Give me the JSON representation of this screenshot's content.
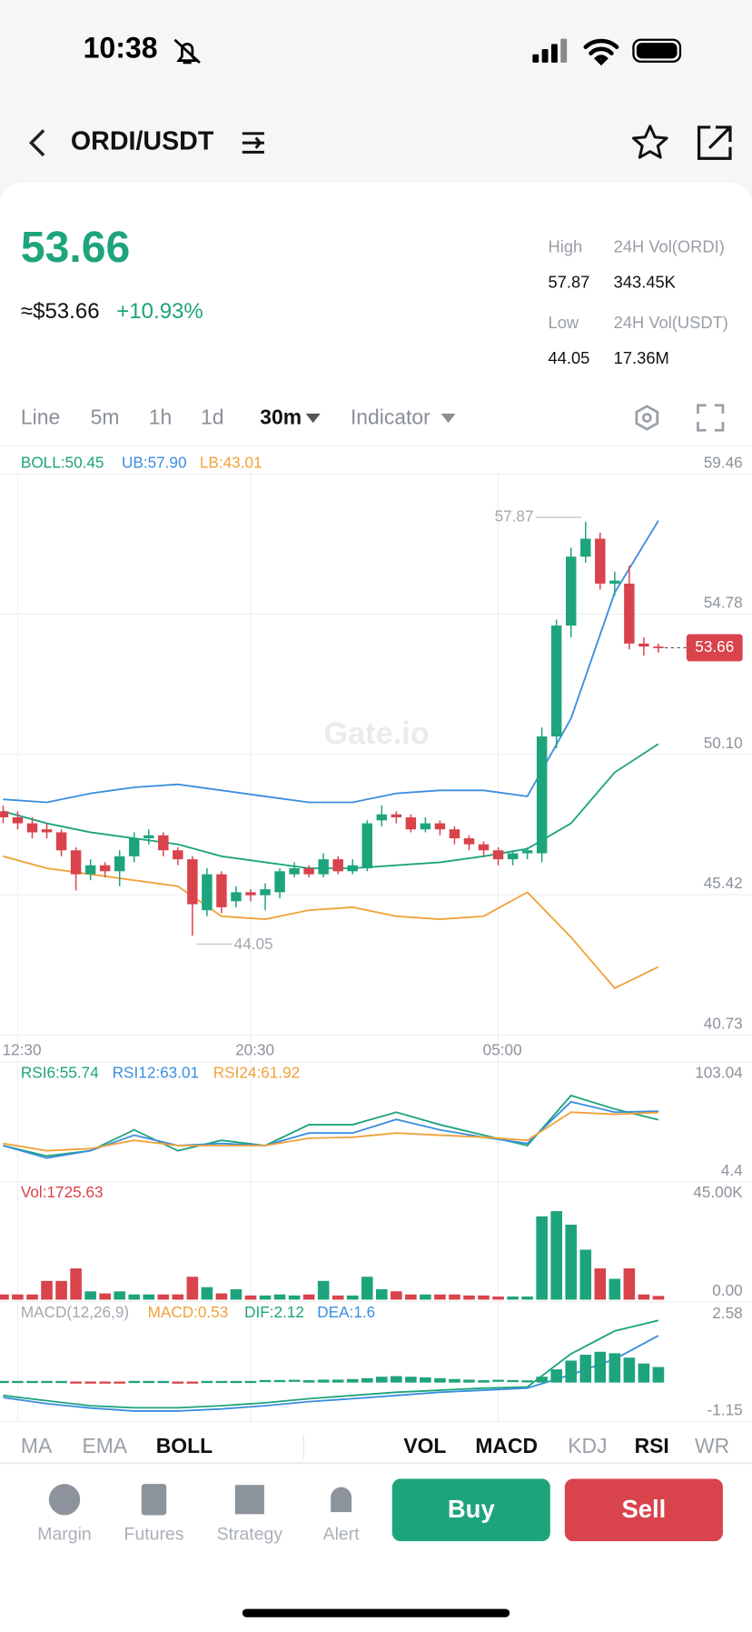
{
  "status_bar": {
    "time": "10:38"
  },
  "header": {
    "pair": "ORDI/USDT"
  },
  "ticker": {
    "price": "53.66",
    "usd_price": "≈$53.66",
    "change": "+10.93%",
    "stats": [
      {
        "label": "High",
        "value": "57.87"
      },
      {
        "label": "24H Vol(ORDI)",
        "value": "343.45K"
      },
      {
        "label": "Low",
        "value": "44.05"
      },
      {
        "label": "24H Vol(USDT)",
        "value": "17.36M"
      }
    ]
  },
  "timeframes": {
    "items": [
      "Line",
      "5m",
      "1h",
      "1d",
      "30m",
      "Indicator"
    ],
    "active": 4
  },
  "chart_data": {
    "type": "candlestick",
    "up_color": "#1ea47c",
    "down_color": "#d8434c",
    "open": [
      48.2,
      48.0,
      47.8,
      47.6,
      47.5,
      46.9,
      46.1,
      46.4,
      46.2,
      46.7,
      47.3,
      47.4,
      46.9,
      46.6,
      44.9,
      46.1,
      45.2,
      45.5,
      45.4,
      45.5,
      46.1,
      46.3,
      46.1,
      46.6,
      46.2,
      46.3,
      47.9,
      48.1,
      48.0,
      47.6,
      47.8,
      47.6,
      47.3,
      47.1,
      46.9,
      46.6,
      46.8,
      46.8,
      50.7,
      54.4,
      56.7,
      57.3,
      55.8,
      55.8,
      53.8,
      53.7
    ],
    "high": [
      48.4,
      48.2,
      48.0,
      47.8,
      47.6,
      47.0,
      46.6,
      46.5,
      46.9,
      47.5,
      47.6,
      47.5,
      47.0,
      46.7,
      46.3,
      46.2,
      45.7,
      45.6,
      45.8,
      46.3,
      46.5,
      46.4,
      46.8,
      46.7,
      46.6,
      47.9,
      48.4,
      48.2,
      48.1,
      48.0,
      47.9,
      47.7,
      47.4,
      47.2,
      47.0,
      46.9,
      47.0,
      51.0,
      54.6,
      57.0,
      57.87,
      57.5,
      56.2,
      56.4,
      54.0,
      53.8
    ],
    "low": [
      47.8,
      47.6,
      47.3,
      47.3,
      46.7,
      45.56,
      45.9,
      46.0,
      45.7,
      46.5,
      47.1,
      46.7,
      46.4,
      44.05,
      44.7,
      44.8,
      45.0,
      45.2,
      44.9,
      45.3,
      46.0,
      46.0,
      46.0,
      46.1,
      46.1,
      46.2,
      47.7,
      47.8,
      47.5,
      47.5,
      47.4,
      47.1,
      46.9,
      46.7,
      46.4,
      46.4,
      46.6,
      46.5,
      50.3,
      54.0,
      56.5,
      55.6,
      55.4,
      53.6,
      53.4,
      53.5
    ],
    "close": [
      48.0,
      47.8,
      47.5,
      47.5,
      46.9,
      46.1,
      46.4,
      46.2,
      46.7,
      47.3,
      47.4,
      46.9,
      46.6,
      45.1,
      46.1,
      45.0,
      45.5,
      45.4,
      45.6,
      46.2,
      46.3,
      46.1,
      46.6,
      46.2,
      46.4,
      47.8,
      48.1,
      48.0,
      47.6,
      47.8,
      47.6,
      47.3,
      47.1,
      46.9,
      46.6,
      46.8,
      46.9,
      50.7,
      54.4,
      56.7,
      57.3,
      55.8,
      55.9,
      53.8,
      53.7,
      53.66
    ],
    "ylim": [
      40.73,
      59.46
    ],
    "yticks": [
      59.46,
      54.78,
      {
        "value": 50.1,
        "label": "50.10"
      },
      45.42,
      40.73
    ],
    "xticks": [
      {
        "value": 1,
        "label": "12:30"
      },
      {
        "value": 17,
        "label": "20:30"
      },
      {
        "value": 34,
        "label": "05:00"
      }
    ],
    "watermark": "Gate.io",
    "boll": {
      "x": [
        0,
        3,
        6,
        9,
        12,
        15,
        18,
        21,
        24,
        27,
        30,
        33,
        36,
        39,
        42,
        45
      ],
      "series": [
        {
          "name": "BOLL:50.45",
          "color": "#1ea47c",
          "values": [
            48.2,
            47.8,
            47.5,
            47.3,
            47.1,
            46.7,
            46.5,
            46.3,
            46.3,
            46.4,
            46.5,
            46.7,
            46.95,
            47.8,
            49.5,
            50.45
          ]
        },
        {
          "name": "UB:57.90",
          "color": "#3b8ede",
          "values": [
            48.6,
            48.5,
            48.8,
            49.0,
            49.1,
            48.9,
            48.7,
            48.5,
            48.5,
            48.8,
            48.9,
            48.9,
            48.7,
            51.3,
            55.5,
            57.9
          ]
        },
        {
          "name": "LB:43.01",
          "color": "#f0a23a",
          "values": [
            46.7,
            46.3,
            46.1,
            45.9,
            45.7,
            44.7,
            44.6,
            44.9,
            45.0,
            44.7,
            44.6,
            44.7,
            45.5,
            44.0,
            42.3,
            43.01
          ]
        }
      ]
    },
    "rsi": {
      "ylim": [
        4.4,
        103.04
      ],
      "yticks": [
        103.04,
        4.4
      ],
      "x": [
        0,
        3,
        6,
        9,
        12,
        15,
        18,
        21,
        24,
        27,
        30,
        33,
        36,
        39,
        42,
        45
      ],
      "series": [
        {
          "name": "RSI6:55.74",
          "color": "#1ea47c",
          "values": [
            33.7,
            24.8,
            29.3,
            47.1,
            29.3,
            38.2,
            33.7,
            51.5,
            51.5,
            62.2,
            51.5,
            42.6,
            33.7,
            76.4,
            64.9,
            55.74
          ]
        },
        {
          "name": "RSI12:63.01",
          "color": "#3b8ede",
          "values": [
            33.7,
            23.1,
            29.3,
            42.6,
            33.7,
            35.5,
            33.7,
            44.4,
            44.4,
            56.0,
            47.1,
            40.8,
            35.5,
            71.1,
            62.2,
            63.01
          ]
        },
        {
          "name": "RSI24:61.92",
          "color": "#f0a23a",
          "values": [
            35.5,
            29.3,
            31.1,
            38.2,
            33.7,
            33.7,
            33.7,
            40.0,
            40.8,
            44.4,
            42.6,
            40.8,
            38.2,
            62.2,
            60.4,
            61.92
          ]
        }
      ]
    },
    "vol": {
      "name": "Vol:1725.63",
      "color": "#d8434c",
      "ylim": [
        0,
        45000
      ],
      "yticks": [
        {
          "value": 45000,
          "label": "45.00K"
        },
        {
          "value": 0,
          "label": "0.00"
        }
      ],
      "values": [
        2420,
        2420,
        2420,
        8710,
        8710,
        14520,
        3870,
        2900,
        3870,
        2420,
        2420,
        2420,
        2420,
        10650,
        5810,
        2900,
        4840,
        1940,
        1940,
        2420,
        1940,
        2420,
        8710,
        1940,
        1940,
        10650,
        4840,
        3870,
        2420,
        2420,
        2420,
        2420,
        1940,
        1940,
        1450,
        1450,
        1450,
        38720,
        41140,
        34850,
        23230,
        14520,
        9680,
        14520,
        2420,
        1725.63
      ]
    },
    "macd": {
      "title": "MACD(12,26,9)",
      "ylim": [
        -1.15,
        2.58
      ],
      "yticks": [
        2.58,
        -1.15
      ],
      "histogram": {
        "name": "MACD:0.53",
        "color": "#f0a23a",
        "values": [
          0.02,
          0.02,
          0.02,
          0.02,
          0.02,
          -0.03,
          -0.03,
          -0.03,
          -0.03,
          0.02,
          0.02,
          0.02,
          -0.02,
          -0.02,
          0.02,
          0.02,
          0.02,
          0.02,
          0.05,
          0.05,
          0.06,
          0.08,
          0.1,
          0.1,
          0.12,
          0.15,
          0.2,
          0.22,
          0.2,
          0.18,
          0.15,
          0.12,
          0.1,
          0.08,
          0.06,
          0.05,
          0.04,
          0.2,
          0.45,
          0.75,
          0.95,
          1.05,
          1.0,
          0.85,
          0.65,
          0.53
        ]
      },
      "x": [
        0,
        3,
        6,
        9,
        12,
        15,
        18,
        21,
        24,
        27,
        30,
        33,
        36,
        39,
        42,
        45
      ],
      "series": [
        {
          "name": "DIF:2.12",
          "color": "#1ea47c",
          "values": [
            -0.44,
            -0.62,
            -0.79,
            -0.86,
            -0.86,
            -0.79,
            -0.69,
            -0.55,
            -0.44,
            -0.33,
            -0.26,
            -0.19,
            -0.15,
            0.98,
            1.76,
            2.12
          ]
        },
        {
          "name": "DEA:1.6",
          "color": "#3b8ede",
          "values": [
            -0.51,
            -0.72,
            -0.87,
            -0.97,
            -0.97,
            -0.9,
            -0.79,
            -0.65,
            -0.55,
            -0.44,
            -0.33,
            -0.26,
            -0.19,
            0.27,
            0.8,
            1.6
          ]
        }
      ]
    }
  },
  "indicator_tabs": {
    "main": [
      "MA",
      "EMA",
      "BOLL"
    ],
    "main_active": [
      2
    ],
    "sub": [
      "VOL",
      "MACD",
      "KDJ",
      "RSI",
      "WR"
    ],
    "sub_active": [
      0,
      1,
      3
    ]
  },
  "bottom_nav": {
    "items": [
      "Margin",
      "Futures",
      "Strategy",
      "Alert"
    ],
    "buy": "Buy",
    "sell": "Sell"
  }
}
